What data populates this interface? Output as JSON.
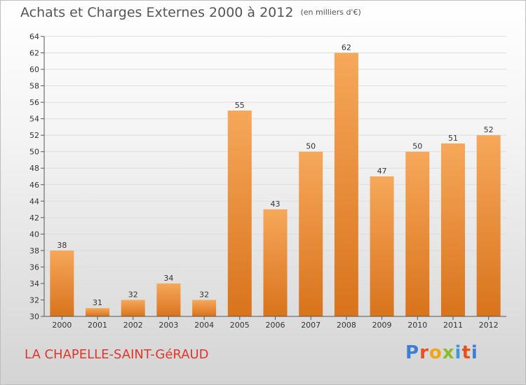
{
  "title": "Achats et Charges Externes 2000 à 2012",
  "unit": "(en milliers d'€)",
  "commune": "LA CHAPELLE-SAINT-GéRAUD",
  "logo": {
    "letters": [
      "P",
      "r",
      "o",
      "x",
      "i",
      "t",
      "i"
    ],
    "colors": [
      "#3a7fd5",
      "#e8511f",
      "#f2a516",
      "#8bbd2a",
      "#3a9ad9",
      "#e8511f",
      "#3a7fd5"
    ]
  },
  "colors": {
    "bar_light": "#f6a85a",
    "bar_dark": "#d9731c",
    "label": "#333333",
    "axis": "#555555",
    "grid": "#dddddd"
  },
  "chart_data": {
    "type": "bar",
    "categories": [
      "2000",
      "2001",
      "2002",
      "2003",
      "2004",
      "2005",
      "2006",
      "2007",
      "2008",
      "2009",
      "2010",
      "2011",
      "2012"
    ],
    "values": [
      38,
      31,
      32,
      34,
      32,
      55,
      43,
      50,
      62,
      47,
      50,
      51,
      52
    ],
    "ylim": [
      30,
      64
    ],
    "yticks": [
      30,
      32,
      34,
      36,
      38,
      40,
      42,
      44,
      46,
      48,
      50,
      52,
      54,
      56,
      58,
      60,
      62,
      64
    ],
    "grid": true
  }
}
